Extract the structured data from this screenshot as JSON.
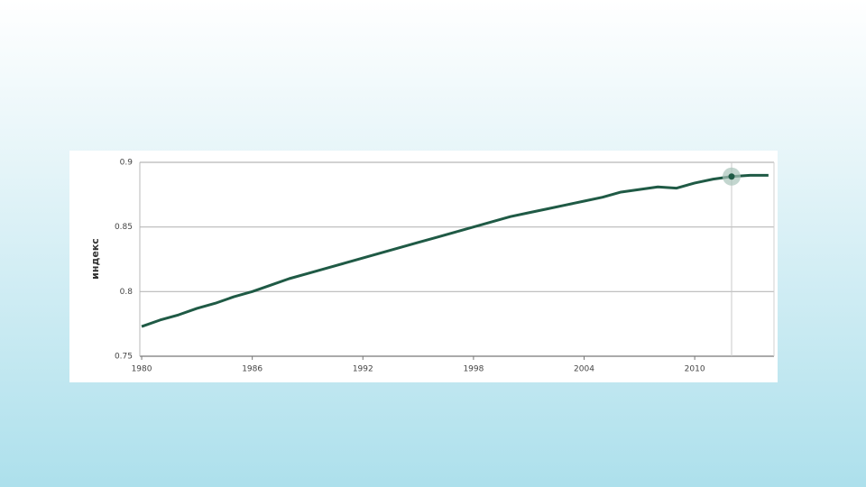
{
  "chart_data": {
    "type": "line",
    "y_label": "индекс",
    "x": [
      1980,
      1981,
      1982,
      1983,
      1984,
      1985,
      1986,
      1987,
      1988,
      1989,
      1990,
      1991,
      1992,
      1993,
      1994,
      1995,
      1996,
      1997,
      1998,
      1999,
      2000,
      2001,
      2002,
      2003,
      2004,
      2005,
      2006,
      2007,
      2008,
      2009,
      2010,
      2011,
      2012,
      2013,
      2014
    ],
    "series": [
      {
        "color": "#1f5a45",
        "values": [
          0.773,
          0.778,
          0.782,
          0.787,
          0.791,
          0.796,
          0.8,
          0.805,
          0.81,
          0.814,
          0.818,
          0.822,
          0.826,
          0.83,
          0.834,
          0.838,
          0.842,
          0.846,
          0.85,
          0.854,
          0.858,
          0.861,
          0.864,
          0.867,
          0.87,
          0.873,
          0.877,
          0.879,
          0.881,
          0.88,
          0.884,
          0.887,
          0.889,
          0.89,
          0.89
        ]
      }
    ],
    "xlim": [
      1979.9,
      2014.3
    ],
    "xticks": [
      1980,
      1986,
      1992,
      1998,
      2004,
      2010
    ],
    "ylim": [
      0.75,
      0.9
    ],
    "yticks": [
      0.75,
      0.8,
      0.85,
      0.9
    ],
    "grid": true,
    "highlight": 2012
  }
}
